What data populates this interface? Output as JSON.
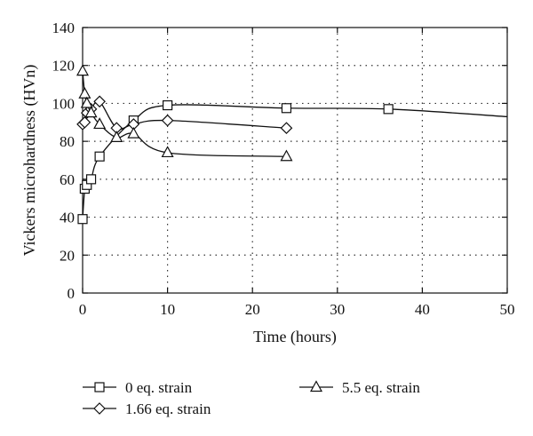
{
  "chart_data": {
    "type": "line",
    "title": "",
    "xlabel": "Time (hours)",
    "ylabel": "Vickers microhardness (HVn)",
    "xlim": [
      0,
      50
    ],
    "ylim": [
      0,
      140
    ],
    "x_ticks": [
      "0",
      "10",
      "20",
      "30",
      "40",
      "50"
    ],
    "y_ticks": [
      "0",
      "20",
      "40",
      "60",
      "80",
      "100",
      "120",
      "140"
    ],
    "grid": true,
    "grid_style": "dotted",
    "legend_position": "bottom",
    "series": [
      {
        "name": "0 eq. strain",
        "marker": "square",
        "x": [
          0,
          0.25,
          0.5,
          1,
          2,
          6,
          10,
          24,
          36
        ],
        "y": [
          39,
          55,
          57,
          60,
          72,
          91,
          99,
          97.5,
          97
        ],
        "curve_extends_to": [
          50,
          93
        ]
      },
      {
        "name": "1.66 eq. strain",
        "marker": "diamond",
        "x": [
          0,
          0.25,
          0.5,
          1,
          2,
          4,
          6,
          10,
          24
        ],
        "y": [
          89,
          90,
          95,
          97,
          101,
          87,
          89,
          91,
          87
        ]
      },
      {
        "name": "5.5 eq. strain",
        "marker": "triangle",
        "x": [
          0,
          0.25,
          0.5,
          1,
          2,
          4,
          6,
          10,
          24
        ],
        "y": [
          117,
          105,
          100,
          95,
          89,
          82,
          84,
          74,
          72
        ]
      }
    ]
  }
}
